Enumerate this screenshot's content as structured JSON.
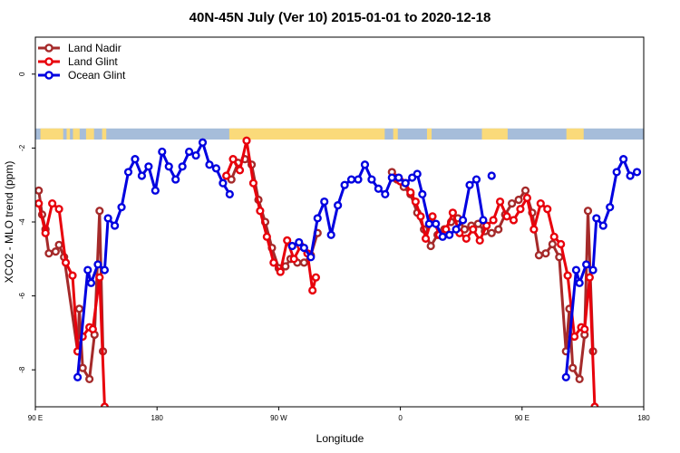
{
  "chart_data": {
    "type": "line",
    "title": "40N-45N July (Ver 10)   2015-01-01 to 2020-12-18",
    "xlabel": "Longitude",
    "ylabel": "XCO2 - MLO trend (ppm)",
    "xlim": [
      90,
      450
    ],
    "ylim": [
      -9.0,
      1.0
    ],
    "x_ticks": [
      {
        "value": 90,
        "label": "90 E"
      },
      {
        "value": 162,
        "label": "180"
      },
      {
        "value": 234,
        "label": "90 W"
      },
      {
        "value": 306,
        "label": "0"
      },
      {
        "value": 378,
        "label": "90 E"
      },
      {
        "value": 450,
        "label": "180"
      }
    ],
    "y_ticks": [
      {
        "value": 0,
        "label": "0"
      },
      {
        "value": -2,
        "label": "-2"
      },
      {
        "value": -4,
        "label": "-4"
      },
      {
        "value": -6,
        "label": "-6"
      },
      {
        "value": -8,
        "label": "-8"
      }
    ],
    "legend_position": "top-left",
    "grid": false,
    "land_sea_strip": {
      "y_top": -1.47,
      "y_bottom": -1.77,
      "land_color": "#FADA7A",
      "ocean_color": "#A6BDDA"
    },
    "series": [
      {
        "name": "Land Nadir",
        "color": "#A52A2A",
        "points": [
          [
            92,
            -3.15
          ],
          [
            94,
            -3.8
          ],
          [
            96,
            -4.2
          ],
          [
            98,
            -4.85
          ],
          [
            102,
            -4.8
          ],
          [
            104,
            -4.62
          ],
          [
            107,
            -4.95
          ],
          [
            115,
            -7.5
          ],
          [
            116,
            -6.35
          ],
          [
            118,
            -7.95
          ],
          [
            122,
            -8.25
          ],
          [
            125,
            -7.05
          ],
          [
            128,
            -3.7
          ],
          [
            130,
            -7.5
          ],
          [
            206,
            -2.85
          ],
          [
            210,
            -2.4
          ],
          [
            214,
            -2.3
          ],
          [
            218,
            -2.45
          ],
          [
            222,
            -3.4
          ],
          [
            226,
            -4.0
          ],
          [
            230,
            -4.7
          ],
          [
            234,
            -5.25
          ],
          [
            238,
            -5.2
          ],
          [
            241,
            -5.0
          ],
          [
            245,
            -5.1
          ],
          [
            249,
            -5.1
          ],
          [
            253,
            -4.9
          ],
          [
            257,
            -4.3
          ],
          [
            301,
            -2.65
          ],
          [
            304,
            -2.85
          ],
          [
            308,
            -3.05
          ],
          [
            312,
            -3.25
          ],
          [
            316,
            -3.75
          ],
          [
            320,
            -4.2
          ],
          [
            324,
            -4.65
          ],
          [
            328,
            -4.35
          ],
          [
            332,
            -4.2
          ],
          [
            336,
            -4.0
          ],
          [
            340,
            -3.9
          ],
          [
            344,
            -4.2
          ],
          [
            348,
            -4.1
          ],
          [
            352,
            -4.05
          ],
          [
            356,
            -4.25
          ],
          [
            360,
            -4.3
          ],
          [
            364,
            -4.2
          ],
          [
            368,
            -3.8
          ],
          [
            372,
            -3.5
          ],
          [
            376,
            -3.4
          ],
          [
            380,
            -3.15
          ],
          [
            384,
            -3.75
          ],
          [
            388,
            -4.9
          ],
          [
            392,
            -4.85
          ],
          [
            396,
            -4.6
          ],
          [
            400,
            -4.95
          ],
          [
            404,
            -7.5
          ],
          [
            406,
            -6.35
          ],
          [
            408,
            -7.95
          ],
          [
            412,
            -8.25
          ],
          [
            415,
            -7.05
          ],
          [
            417,
            -3.7
          ],
          [
            420,
            -7.5
          ]
        ]
      },
      {
        "name": "Land Glint",
        "color": "#E8000B",
        "points": [
          [
            92,
            -3.5
          ],
          [
            96,
            -4.3
          ],
          [
            100,
            -3.5
          ],
          [
            104,
            -3.65
          ],
          [
            108,
            -5.1
          ],
          [
            112,
            -5.45
          ],
          [
            115,
            -7.5
          ],
          [
            118,
            -7.1
          ],
          [
            122,
            -6.85
          ],
          [
            124,
            -6.9
          ],
          [
            128,
            -5.5
          ],
          [
            131,
            -9.0
          ],
          [
            203,
            -2.75
          ],
          [
            207,
            -2.3
          ],
          [
            211,
            -2.6
          ],
          [
            215,
            -1.8
          ],
          [
            219,
            -2.95
          ],
          [
            223,
            -3.7
          ],
          [
            227,
            -4.4
          ],
          [
            231,
            -5.1
          ],
          [
            235,
            -5.35
          ],
          [
            239,
            -4.5
          ],
          [
            243,
            -5.0
          ],
          [
            247,
            -4.65
          ],
          [
            251,
            -4.85
          ],
          [
            254,
            -5.85
          ],
          [
            256,
            -5.5
          ],
          [
            303,
            -2.8
          ],
          [
            306,
            -2.9
          ],
          [
            309,
            -2.95
          ],
          [
            312,
            -3.2
          ],
          [
            315,
            -3.45
          ],
          [
            318,
            -3.85
          ],
          [
            321,
            -4.45
          ],
          [
            325,
            -3.85
          ],
          [
            329,
            -4.35
          ],
          [
            333,
            -4.2
          ],
          [
            337,
            -3.75
          ],
          [
            341,
            -4.3
          ],
          [
            345,
            -4.45
          ],
          [
            349,
            -4.2
          ],
          [
            353,
            -4.5
          ],
          [
            357,
            -4.1
          ],
          [
            361,
            -3.95
          ],
          [
            365,
            -3.45
          ],
          [
            369,
            -3.85
          ],
          [
            373,
            -3.95
          ],
          [
            377,
            -3.65
          ],
          [
            381,
            -3.35
          ],
          [
            385,
            -4.2
          ],
          [
            389,
            -3.5
          ],
          [
            393,
            -3.65
          ],
          [
            397,
            -4.4
          ],
          [
            401,
            -4.6
          ],
          [
            405,
            -5.45
          ],
          [
            409,
            -7.1
          ],
          [
            413,
            -6.85
          ],
          [
            415,
            -6.9
          ],
          [
            418,
            -5.5
          ],
          [
            421,
            -9.0
          ]
        ]
      },
      {
        "name": "Ocean Glint",
        "color": "#0000E0",
        "segments": [
          [
            [
              115,
              -8.2
            ],
            [
              121,
              -5.3
            ],
            [
              123,
              -5.65
            ],
            [
              127,
              -5.15
            ],
            [
              131,
              -5.3
            ],
            [
              133,
              -3.9
            ],
            [
              137,
              -4.1
            ],
            [
              141,
              -3.6
            ],
            [
              145,
              -2.65
            ],
            [
              149,
              -2.3
            ],
            [
              153,
              -2.75
            ],
            [
              157,
              -2.5
            ],
            [
              161,
              -3.15
            ],
            [
              165,
              -2.1
            ],
            [
              169,
              -2.5
            ],
            [
              173,
              -2.85
            ],
            [
              177,
              -2.5
            ],
            [
              181,
              -2.1
            ],
            [
              185,
              -2.2
            ],
            [
              189,
              -1.85
            ],
            [
              193,
              -2.45
            ],
            [
              197,
              -2.55
            ],
            [
              201,
              -2.95
            ],
            [
              205,
              -3.25
            ]
          ],
          [
            [
              242,
              -4.65
            ],
            [
              246,
              -4.55
            ],
            [
              249,
              -4.7
            ],
            [
              253,
              -4.95
            ],
            [
              257,
              -3.9
            ],
            [
              261,
              -3.45
            ],
            [
              265,
              -4.35
            ],
            [
              269,
              -3.55
            ],
            [
              273,
              -3.0
            ],
            [
              277,
              -2.85
            ],
            [
              281,
              -2.85
            ],
            [
              285,
              -2.45
            ],
            [
              289,
              -2.85
            ],
            [
              293,
              -3.1
            ],
            [
              297,
              -3.25
            ],
            [
              301,
              -2.8
            ],
            [
              305,
              -2.8
            ],
            [
              309,
              -2.95
            ],
            [
              313,
              -2.8
            ],
            [
              316,
              -2.7
            ],
            [
              319,
              -3.25
            ],
            [
              323,
              -4.05
            ],
            [
              327,
              -4.05
            ],
            [
              331,
              -4.4
            ],
            [
              335,
              -4.35
            ],
            [
              339,
              -4.2
            ],
            [
              343,
              -3.95
            ],
            [
              347,
              -3.0
            ],
            [
              351,
              -2.85
            ],
            [
              355,
              -3.95
            ]
          ],
          [
            [
              360,
              -2.75
            ]
          ],
          [
            [
              404,
              -8.2
            ],
            [
              410,
              -5.3
            ],
            [
              412,
              -5.65
            ],
            [
              416,
              -5.15
            ],
            [
              420,
              -5.3
            ],
            [
              422,
              -3.9
            ],
            [
              426,
              -4.1
            ],
            [
              430,
              -3.6
            ],
            [
              434,
              -2.65
            ],
            [
              438,
              -2.3
            ],
            [
              442,
              -2.75
            ],
            [
              446,
              -2.65
            ]
          ]
        ]
      }
    ]
  },
  "land_mask": [
    [
      91.5,
      "o"
    ],
    [
      94.5,
      "l"
    ],
    [
      95.5,
      "l"
    ],
    [
      97,
      "l"
    ],
    [
      99,
      "l"
    ],
    [
      101.5,
      "l"
    ],
    [
      103,
      "l"
    ],
    [
      105,
      "l"
    ],
    [
      107.5,
      "o"
    ],
    [
      109.5,
      "l"
    ],
    [
      111,
      "o"
    ],
    [
      113.5,
      "l"
    ],
    [
      115,
      "l"
    ],
    [
      117,
      "o"
    ],
    [
      118.5,
      "o"
    ],
    [
      121.5,
      "l"
    ],
    [
      123.5,
      "l"
    ],
    [
      125.5,
      "o"
    ],
    [
      128.5,
      "o"
    ],
    [
      130.5,
      "l"
    ],
    [
      133,
      "o"
    ],
    [
      136,
      "o"
    ],
    [
      139.5,
      "o"
    ],
    [
      143,
      "o"
    ],
    [
      146,
      "o"
    ],
    [
      149.5,
      "o"
    ],
    [
      152,
      "o"
    ],
    [
      155.5,
      "o"
    ],
    [
      158,
      "o"
    ],
    [
      160.5,
      "o"
    ],
    [
      163.5,
      "o"
    ],
    [
      166,
      "o"
    ],
    [
      169,
      "o"
    ],
    [
      172.5,
      "o"
    ],
    [
      175,
      "o"
    ],
    [
      178.5,
      "o"
    ],
    [
      181,
      "o"
    ],
    [
      184,
      "o"
    ],
    [
      186.5,
      "o"
    ],
    [
      189.5,
      "o"
    ],
    [
      192,
      "o"
    ],
    [
      195,
      "o"
    ],
    [
      198,
      "o"
    ],
    [
      201,
      "o"
    ],
    [
      203.5,
      "o"
    ],
    [
      206,
      "l"
    ],
    [
      208,
      "l"
    ],
    [
      211,
      "l"
    ],
    [
      213,
      "l"
    ],
    [
      215.5,
      "l"
    ],
    [
      218,
      "l"
    ],
    [
      220.5,
      "l"
    ],
    [
      223,
      "l"
    ],
    [
      225.5,
      "l"
    ],
    [
      228,
      "l"
    ],
    [
      230.5,
      "l"
    ],
    [
      233,
      "l"
    ],
    [
      235.5,
      "l"
    ],
    [
      238,
      "l"
    ],
    [
      240.5,
      "l"
    ],
    [
      243,
      "l"
    ],
    [
      245,
      "l"
    ],
    [
      247.5,
      "l"
    ],
    [
      250,
      "l"
    ],
    [
      252.5,
      "l"
    ],
    [
      255,
      "l"
    ],
    [
      257.5,
      "l"
    ],
    [
      260,
      "l"
    ],
    [
      262.5,
      "l"
    ],
    [
      265,
      "l"
    ],
    [
      267.5,
      "l"
    ],
    [
      270,
      "l"
    ],
    [
      272.5,
      "l"
    ],
    [
      275,
      "l"
    ],
    [
      277.5,
      "l"
    ],
    [
      280,
      "l"
    ],
    [
      282.5,
      "l"
    ],
    [
      285,
      "l"
    ],
    [
      287.5,
      "l"
    ],
    [
      290,
      "l"
    ],
    [
      292.5,
      "l"
    ],
    [
      295,
      "l"
    ],
    [
      298,
      "o"
    ],
    [
      300.5,
      "o"
    ],
    [
      303,
      "l"
    ],
    [
      305.5,
      "o"
    ],
    [
      308,
      "o"
    ],
    [
      310.5,
      "o"
    ],
    [
      313,
      "o"
    ],
    [
      315.5,
      "o"
    ],
    [
      318,
      "o"
    ],
    [
      320.5,
      "o"
    ],
    [
      323,
      "l"
    ],
    [
      325.5,
      "o"
    ],
    [
      328,
      "o"
    ],
    [
      330.5,
      "o"
    ],
    [
      333,
      "o"
    ],
    [
      335.5,
      "o"
    ],
    [
      338,
      "o"
    ],
    [
      340.5,
      "o"
    ],
    [
      343,
      "o"
    ],
    [
      345.5,
      "o"
    ],
    [
      348,
      "o"
    ],
    [
      350.5,
      "o"
    ],
    [
      353,
      "o"
    ],
    [
      355.5,
      "l"
    ],
    [
      358,
      "l"
    ],
    [
      360.5,
      "l"
    ],
    [
      363,
      "l"
    ],
    [
      365.5,
      "l"
    ],
    [
      368,
      "l"
    ],
    [
      370.5,
      "o"
    ],
    [
      373,
      "o"
    ],
    [
      375.5,
      "o"
    ],
    [
      378,
      "o"
    ],
    [
      380.5,
      "o"
    ],
    [
      383,
      "o"
    ],
    [
      385.5,
      "o"
    ],
    [
      388,
      "o"
    ],
    [
      390.5,
      "o"
    ],
    [
      393,
      "o"
    ],
    [
      395.5,
      "o"
    ],
    [
      398,
      "o"
    ],
    [
      400.5,
      "o"
    ],
    [
      403,
      "o"
    ],
    [
      405.5,
      "l"
    ],
    [
      408,
      "l"
    ],
    [
      410.5,
      "l"
    ],
    [
      413,
      "l"
    ],
    [
      415.5,
      "o"
    ],
    [
      418,
      "o"
    ],
    [
      420.5,
      "o"
    ],
    [
      423,
      "o"
    ],
    [
      425.5,
      "o"
    ],
    [
      428,
      "o"
    ],
    [
      430.5,
      "o"
    ],
    [
      433,
      "o"
    ],
    [
      435.5,
      "o"
    ],
    [
      438,
      "o"
    ],
    [
      440.5,
      "o"
    ],
    [
      443,
      "o"
    ],
    [
      445.5,
      "o"
    ],
    [
      448,
      "o"
    ]
  ]
}
